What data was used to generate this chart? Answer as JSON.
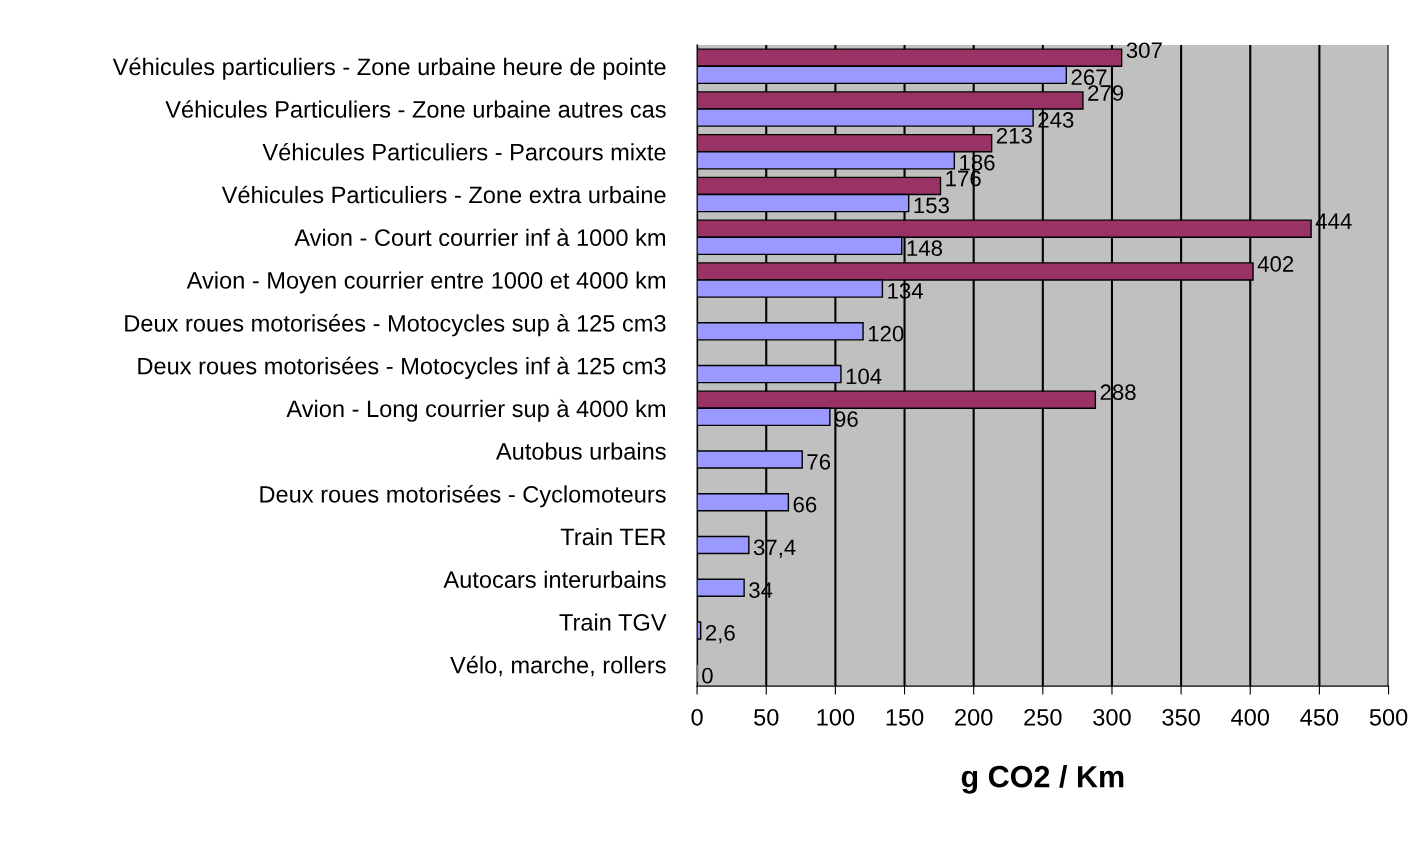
{
  "chart_data": {
    "type": "bar",
    "orientation": "horizontal",
    "xlabel": "g CO2 / Km",
    "categories": [
      "Véhicules particuliers - Zone urbaine heure de pointe",
      "Véhicules Particuliers - Zone urbaine autres cas",
      "Véhicules Particuliers - Parcours mixte",
      "Véhicules Particuliers - Zone extra urbaine",
      "Avion - Court courrier inf à 1000 km",
      "Avion - Moyen courrier entre 1000 et 4000 km",
      "Deux roues motorisées - Motocycles sup à 125 cm3",
      "Deux roues motorisées - Motocycles inf à 125 cm3",
      "Avion - Long courrier sup à 4000 km",
      "Autobus urbains",
      "Deux roues motorisées - Cyclomoteurs",
      "Train TER",
      "Autocars interurbains",
      "Train TGV",
      "Vélo, marche, rollers"
    ],
    "series": [
      {
        "color": "#993366",
        "values": [
          307,
          279,
          213,
          176,
          444,
          402,
          null,
          null,
          288,
          null,
          null,
          null,
          null,
          null,
          null
        ],
        "value_labels": [
          "307",
          "279",
          "213",
          "176",
          "444",
          "402",
          null,
          null,
          "288",
          null,
          null,
          null,
          null,
          null,
          null
        ]
      },
      {
        "color": "#9999ff",
        "values": [
          267,
          243,
          186,
          153,
          148,
          134,
          120,
          104,
          96,
          76,
          66,
          37.4,
          34,
          2.6,
          0
        ],
        "value_labels": [
          "267",
          "243",
          "186",
          "153",
          "148",
          "134",
          "120",
          "104",
          "96",
          "76",
          "66",
          "37,4",
          "34",
          "2,6",
          "0"
        ]
      }
    ],
    "xlim": [
      0,
      500
    ],
    "xticks": [
      0,
      50,
      100,
      150,
      200,
      250,
      300,
      350,
      400,
      450,
      500
    ],
    "grid": "x"
  }
}
